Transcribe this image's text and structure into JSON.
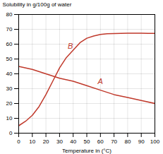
{
  "chart_data": {
    "type": "line",
    "xlabel": "Temperature in (°C)",
    "ylabel": "Solubility in g/100g of water",
    "xlim": [
      0,
      100
    ],
    "ylim": [
      0,
      80
    ],
    "xticks": [
      0,
      10,
      20,
      30,
      40,
      50,
      60,
      70,
      80,
      90,
      100
    ],
    "yticks": [
      0,
      10,
      20,
      30,
      40,
      50,
      60,
      70,
      80
    ],
    "grid": true,
    "series": [
      {
        "color": "#c0392b",
        "x": [
          0,
          5,
          10,
          15,
          20,
          25,
          30,
          35,
          40,
          45,
          50,
          55,
          60,
          65,
          70,
          75,
          80,
          85,
          90,
          95,
          100
        ],
        "values": [
          5,
          8,
          12,
          18,
          26,
          35,
          44,
          51,
          56,
          61,
          64,
          65.5,
          66.5,
          67,
          67.2,
          67.3,
          67.4,
          67.4,
          67.4,
          67.3,
          67.2
        ]
      },
      {
        "color": "#c0392b",
        "x": [
          0,
          10,
          20,
          30,
          40,
          50,
          60,
          70,
          80,
          90,
          100
        ],
        "values": [
          45,
          43,
          40,
          37,
          35,
          32,
          29,
          26,
          24,
          22,
          20
        ]
      }
    ],
    "annotations": [
      {
        "text": "B",
        "x": 36,
        "y": 57,
        "color": "#c0392b"
      },
      {
        "text": "A",
        "x": 58,
        "y": 33,
        "color": "#c0392b"
      }
    ]
  }
}
